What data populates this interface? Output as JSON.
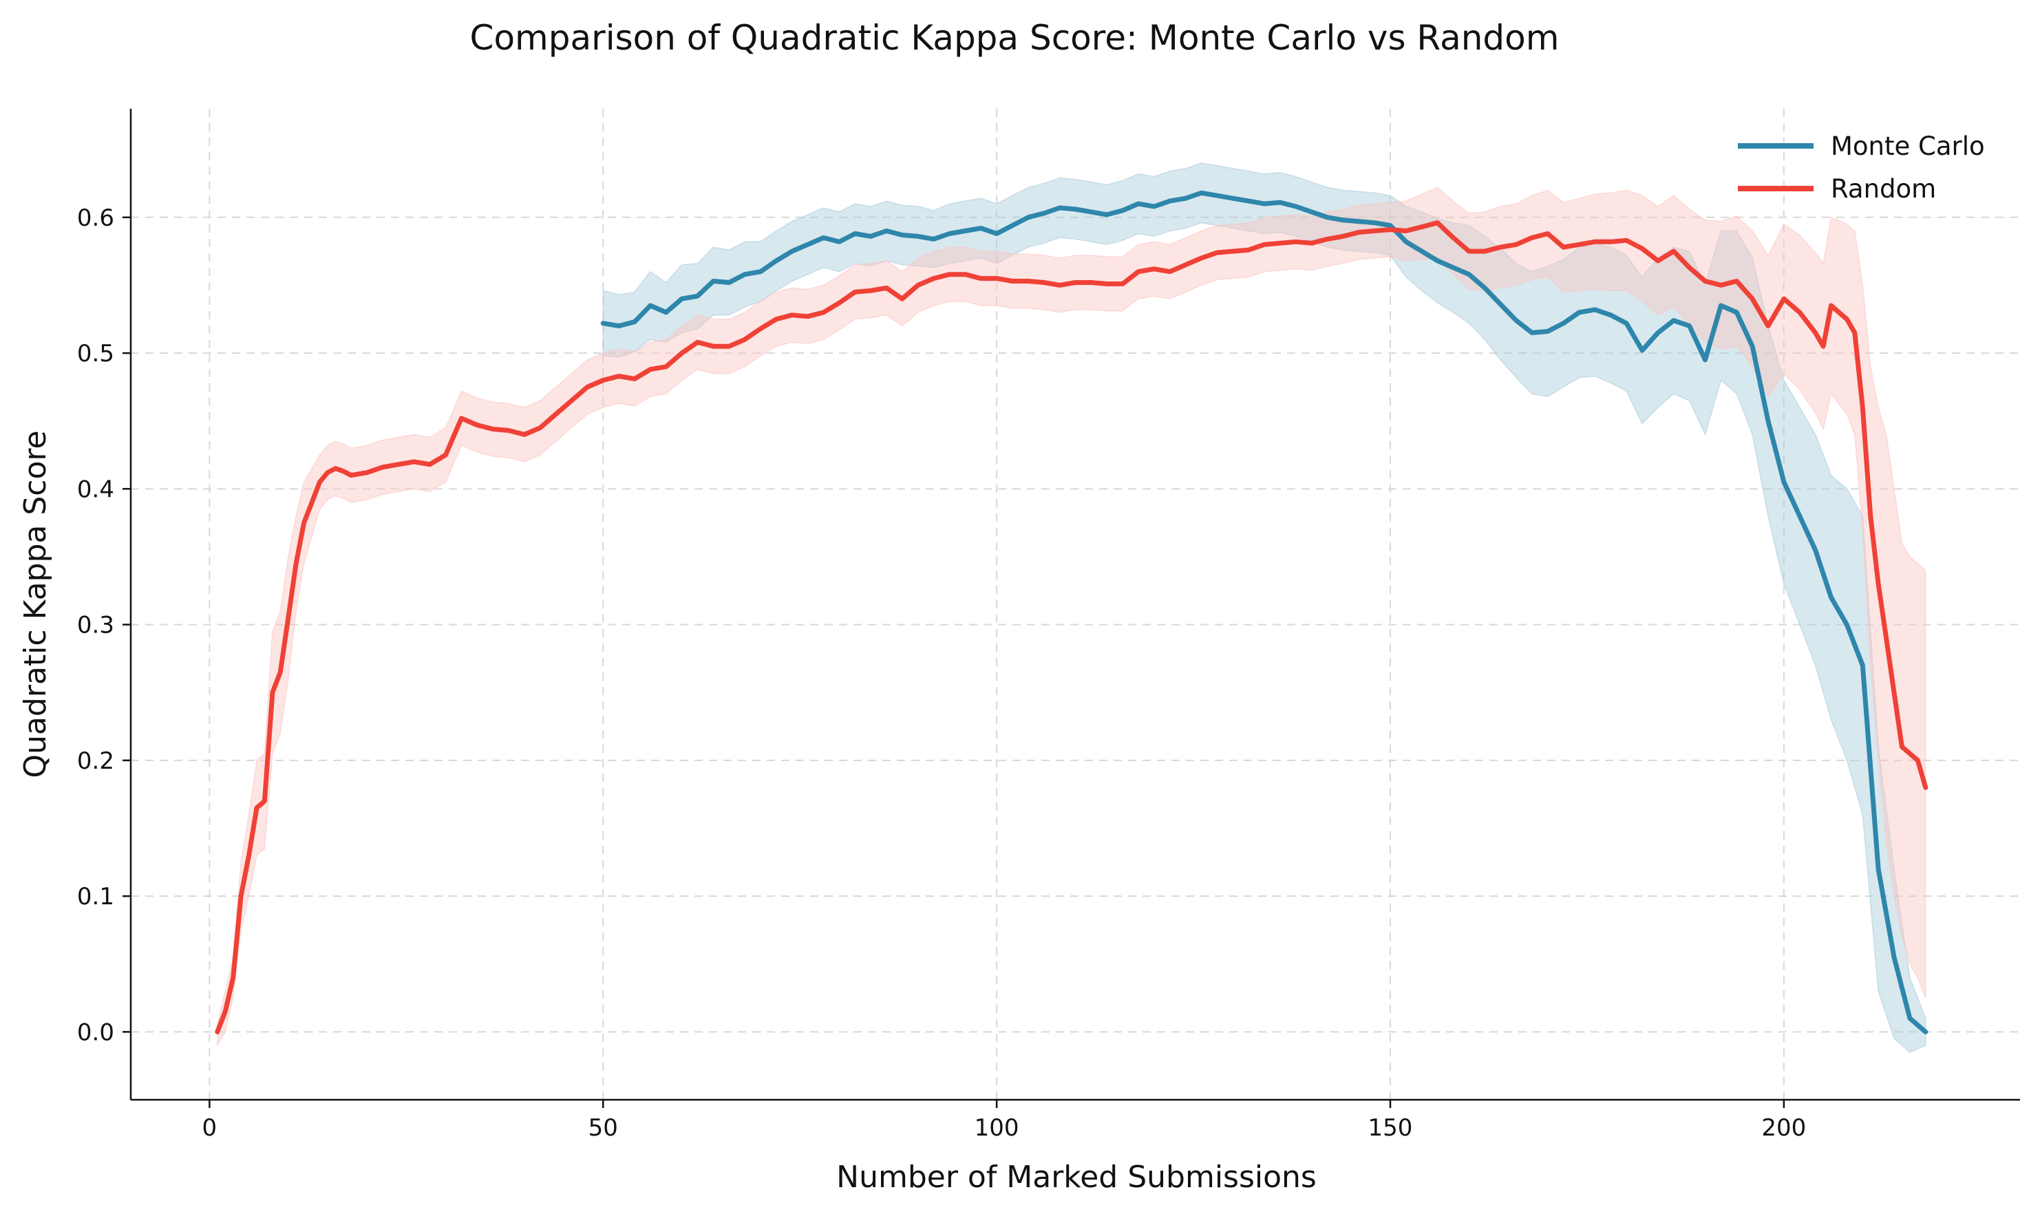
{
  "chart_data": {
    "type": "line",
    "title": "Comparison of Quadratic Kappa Score: Monte Carlo vs Random",
    "xlabel": "Number of Marked Submissions",
    "ylabel": "Quadratic Kappa Score",
    "xlim": [
      -10,
      230
    ],
    "ylim": [
      -0.05,
      0.68
    ],
    "xticks": [
      0,
      50,
      100,
      150,
      200
    ],
    "yticks": [
      0.0,
      0.1,
      0.2,
      0.3,
      0.4,
      0.5,
      0.6
    ],
    "xtick_labels": [
      "0",
      "50",
      "100",
      "150",
      "200"
    ],
    "ytick_labels": [
      "0.0",
      "0.1",
      "0.2",
      "0.3",
      "0.4",
      "0.5",
      "0.6"
    ],
    "grid": true,
    "legend_position": "top-right",
    "series": [
      {
        "name": "Monte Carlo",
        "color": "#2E86AB",
        "band_color": "#a9cbdc",
        "x": [
          50,
          52,
          54,
          56,
          58,
          60,
          62,
          64,
          66,
          68,
          70,
          72,
          74,
          76,
          78,
          80,
          82,
          84,
          86,
          88,
          90,
          92,
          94,
          96,
          98,
          100,
          102,
          104,
          106,
          108,
          110,
          112,
          114,
          116,
          118,
          120,
          122,
          124,
          126,
          128,
          130,
          132,
          134,
          136,
          138,
          140,
          142,
          144,
          146,
          148,
          150,
          152,
          154,
          156,
          158,
          160,
          162,
          164,
          166,
          168,
          170,
          172,
          174,
          176,
          178,
          180,
          182,
          184,
          186,
          188,
          190,
          192,
          194,
          196,
          198,
          200,
          202,
          204,
          206,
          208,
          210,
          212,
          214,
          216,
          218
        ],
        "y": [
          0.522,
          0.52,
          0.523,
          0.535,
          0.53,
          0.54,
          0.542,
          0.553,
          0.552,
          0.558,
          0.56,
          0.568,
          0.575,
          0.58,
          0.585,
          0.582,
          0.588,
          0.586,
          0.59,
          0.587,
          0.586,
          0.584,
          0.588,
          0.59,
          0.592,
          0.588,
          0.594,
          0.6,
          0.603,
          0.607,
          0.606,
          0.604,
          0.602,
          0.605,
          0.61,
          0.608,
          0.612,
          0.614,
          0.618,
          0.616,
          0.614,
          0.612,
          0.61,
          0.611,
          0.608,
          0.604,
          0.6,
          0.598,
          0.597,
          0.596,
          0.594,
          0.582,
          0.575,
          0.568,
          0.563,
          0.558,
          0.548,
          0.536,
          0.524,
          0.515,
          0.516,
          0.522,
          0.53,
          0.532,
          0.528,
          0.522,
          0.502,
          0.515,
          0.524,
          0.52,
          0.495,
          0.535,
          0.53,
          0.505,
          0.45,
          0.405,
          0.38,
          0.355,
          0.32,
          0.3,
          0.27,
          0.12,
          0.055,
          0.01,
          0.0
        ],
        "lower": [
          0.498,
          0.497,
          0.501,
          0.51,
          0.508,
          0.515,
          0.518,
          0.528,
          0.528,
          0.534,
          0.538,
          0.546,
          0.553,
          0.558,
          0.563,
          0.56,
          0.566,
          0.564,
          0.568,
          0.565,
          0.564,
          0.563,
          0.566,
          0.568,
          0.57,
          0.566,
          0.572,
          0.578,
          0.581,
          0.585,
          0.584,
          0.582,
          0.58,
          0.583,
          0.588,
          0.586,
          0.59,
          0.592,
          0.596,
          0.594,
          0.592,
          0.59,
          0.588,
          0.589,
          0.586,
          0.582,
          0.578,
          0.576,
          0.575,
          0.574,
          0.572,
          0.556,
          0.546,
          0.537,
          0.53,
          0.522,
          0.51,
          0.495,
          0.482,
          0.47,
          0.468,
          0.475,
          0.482,
          0.483,
          0.478,
          0.472,
          0.448,
          0.46,
          0.47,
          0.465,
          0.44,
          0.48,
          0.47,
          0.44,
          0.38,
          0.33,
          0.3,
          0.27,
          0.23,
          0.2,
          0.16,
          0.03,
          -0.005,
          -0.015,
          -0.01
        ],
        "upper": [
          0.546,
          0.543,
          0.545,
          0.56,
          0.552,
          0.565,
          0.566,
          0.578,
          0.576,
          0.582,
          0.582,
          0.59,
          0.597,
          0.602,
          0.607,
          0.604,
          0.61,
          0.608,
          0.612,
          0.609,
          0.608,
          0.605,
          0.61,
          0.612,
          0.614,
          0.61,
          0.616,
          0.622,
          0.625,
          0.629,
          0.628,
          0.626,
          0.624,
          0.627,
          0.632,
          0.63,
          0.634,
          0.636,
          0.64,
          0.638,
          0.636,
          0.634,
          0.632,
          0.633,
          0.63,
          0.626,
          0.622,
          0.62,
          0.619,
          0.618,
          0.616,
          0.608,
          0.604,
          0.599,
          0.596,
          0.594,
          0.586,
          0.577,
          0.566,
          0.56,
          0.564,
          0.569,
          0.578,
          0.581,
          0.578,
          0.572,
          0.556,
          0.57,
          0.578,
          0.575,
          0.55,
          0.59,
          0.59,
          0.57,
          0.52,
          0.48,
          0.46,
          0.44,
          0.41,
          0.4,
          0.38,
          0.21,
          0.12,
          0.04,
          0.01
        ]
      },
      {
        "name": "Random",
        "color": "#EF4136",
        "band_color": "#fac6c2",
        "x": [
          1,
          2,
          3,
          4,
          5,
          6,
          7,
          8,
          9,
          10,
          11,
          12,
          13,
          14,
          15,
          16,
          17,
          18,
          20,
          22,
          24,
          26,
          28,
          30,
          32,
          34,
          36,
          38,
          40,
          42,
          44,
          46,
          48,
          50,
          52,
          54,
          56,
          58,
          60,
          62,
          64,
          66,
          68,
          70,
          72,
          74,
          76,
          78,
          80,
          82,
          84,
          86,
          88,
          90,
          92,
          94,
          96,
          98,
          100,
          102,
          104,
          106,
          108,
          110,
          112,
          114,
          116,
          118,
          120,
          122,
          124,
          126,
          128,
          130,
          132,
          134,
          136,
          138,
          140,
          142,
          144,
          146,
          148,
          150,
          152,
          154,
          156,
          158,
          160,
          162,
          164,
          166,
          168,
          170,
          172,
          174,
          176,
          178,
          180,
          182,
          184,
          186,
          188,
          190,
          192,
          194,
          196,
          198,
          200,
          202,
          204,
          205,
          206,
          208,
          209,
          210,
          211,
          212,
          213,
          214,
          215,
          216,
          217,
          218
        ],
        "y": [
          0.0,
          0.015,
          0.04,
          0.1,
          0.13,
          0.165,
          0.17,
          0.25,
          0.265,
          0.305,
          0.345,
          0.375,
          0.39,
          0.405,
          0.412,
          0.415,
          0.413,
          0.41,
          0.412,
          0.416,
          0.418,
          0.42,
          0.418,
          0.425,
          0.452,
          0.447,
          0.444,
          0.443,
          0.44,
          0.445,
          0.455,
          0.465,
          0.475,
          0.48,
          0.483,
          0.481,
          0.488,
          0.49,
          0.5,
          0.508,
          0.505,
          0.505,
          0.51,
          0.518,
          0.525,
          0.528,
          0.527,
          0.53,
          0.537,
          0.545,
          0.546,
          0.548,
          0.54,
          0.55,
          0.555,
          0.558,
          0.558,
          0.555,
          0.555,
          0.553,
          0.553,
          0.552,
          0.55,
          0.552,
          0.552,
          0.551,
          0.551,
          0.56,
          0.562,
          0.56,
          0.565,
          0.57,
          0.574,
          0.575,
          0.576,
          0.58,
          0.581,
          0.582,
          0.581,
          0.584,
          0.586,
          0.589,
          0.59,
          0.591,
          0.59,
          0.593,
          0.596,
          0.585,
          0.575,
          0.575,
          0.578,
          0.58,
          0.585,
          0.588,
          0.578,
          0.58,
          0.582,
          0.582,
          0.583,
          0.577,
          0.568,
          0.575,
          0.563,
          0.553,
          0.55,
          0.553,
          0.54,
          0.52,
          0.54,
          0.53,
          0.515,
          0.505,
          0.535,
          0.525,
          0.515,
          0.46,
          0.38,
          0.33,
          0.29,
          0.25,
          0.21,
          0.205,
          0.2,
          0.18
        ],
        "lower": [
          -0.01,
          0.0,
          0.025,
          0.075,
          0.1,
          0.13,
          0.135,
          0.205,
          0.22,
          0.26,
          0.31,
          0.345,
          0.365,
          0.385,
          0.392,
          0.395,
          0.393,
          0.39,
          0.392,
          0.396,
          0.398,
          0.4,
          0.398,
          0.405,
          0.432,
          0.427,
          0.424,
          0.423,
          0.42,
          0.425,
          0.435,
          0.445,
          0.455,
          0.46,
          0.463,
          0.461,
          0.468,
          0.47,
          0.48,
          0.488,
          0.485,
          0.485,
          0.49,
          0.498,
          0.505,
          0.508,
          0.507,
          0.51,
          0.517,
          0.525,
          0.526,
          0.528,
          0.52,
          0.53,
          0.535,
          0.538,
          0.538,
          0.535,
          0.535,
          0.533,
          0.533,
          0.532,
          0.53,
          0.532,
          0.532,
          0.531,
          0.531,
          0.54,
          0.542,
          0.54,
          0.545,
          0.55,
          0.554,
          0.555,
          0.556,
          0.56,
          0.561,
          0.562,
          0.561,
          0.564,
          0.566,
          0.569,
          0.57,
          0.571,
          0.568,
          0.569,
          0.57,
          0.558,
          0.547,
          0.546,
          0.548,
          0.55,
          0.554,
          0.556,
          0.545,
          0.546,
          0.547,
          0.546,
          0.546,
          0.538,
          0.528,
          0.534,
          0.52,
          0.508,
          0.503,
          0.505,
          0.49,
          0.468,
          0.485,
          0.473,
          0.456,
          0.444,
          0.47,
          0.455,
          0.44,
          0.37,
          0.27,
          0.2,
          0.14,
          0.1,
          0.07,
          0.05,
          0.04,
          0.025
        ],
        "upper": [
          0.005,
          0.03,
          0.055,
          0.125,
          0.16,
          0.2,
          0.205,
          0.295,
          0.31,
          0.35,
          0.38,
          0.405,
          0.415,
          0.425,
          0.432,
          0.435,
          0.433,
          0.43,
          0.432,
          0.436,
          0.438,
          0.44,
          0.438,
          0.445,
          0.472,
          0.467,
          0.464,
          0.463,
          0.46,
          0.465,
          0.475,
          0.485,
          0.495,
          0.5,
          0.503,
          0.501,
          0.508,
          0.51,
          0.52,
          0.528,
          0.525,
          0.525,
          0.53,
          0.538,
          0.545,
          0.548,
          0.547,
          0.55,
          0.557,
          0.565,
          0.566,
          0.568,
          0.56,
          0.57,
          0.575,
          0.578,
          0.578,
          0.575,
          0.575,
          0.573,
          0.573,
          0.572,
          0.57,
          0.572,
          0.572,
          0.571,
          0.571,
          0.58,
          0.582,
          0.58,
          0.585,
          0.59,
          0.594,
          0.595,
          0.596,
          0.6,
          0.601,
          0.602,
          0.601,
          0.604,
          0.606,
          0.609,
          0.61,
          0.611,
          0.612,
          0.617,
          0.622,
          0.612,
          0.603,
          0.604,
          0.608,
          0.61,
          0.616,
          0.62,
          0.611,
          0.614,
          0.617,
          0.618,
          0.62,
          0.616,
          0.608,
          0.616,
          0.606,
          0.598,
          0.597,
          0.601,
          0.59,
          0.572,
          0.595,
          0.587,
          0.574,
          0.566,
          0.6,
          0.595,
          0.59,
          0.55,
          0.49,
          0.46,
          0.44,
          0.4,
          0.36,
          0.35,
          0.345,
          0.34
        ]
      }
    ]
  }
}
